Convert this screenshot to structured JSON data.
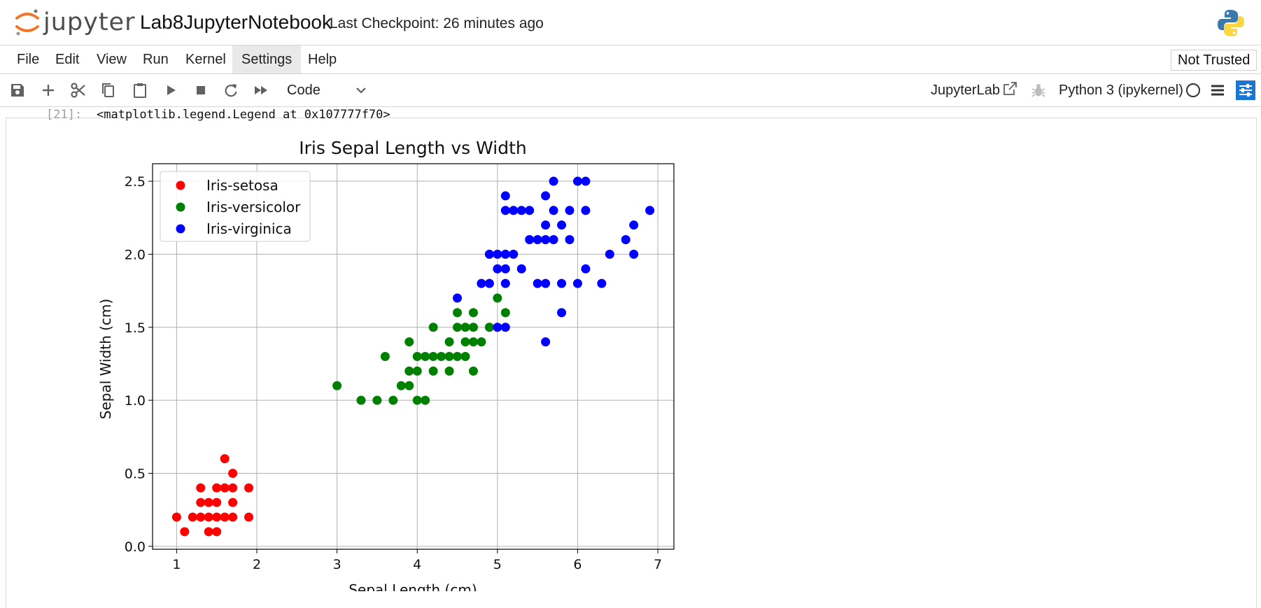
{
  "header": {
    "logo_text": "jupyter",
    "notebook_title": "Lab8JupyterNotebook",
    "checkpoint": "Last Checkpoint: 26 minutes ago"
  },
  "menu": {
    "items": [
      "File",
      "Edit",
      "View",
      "Run",
      "Kernel",
      "Settings",
      "Help"
    ],
    "active": "Settings",
    "trust_status": "Not Trusted"
  },
  "toolbar": {
    "icons": [
      "save-icon",
      "plus-icon",
      "scissors-icon",
      "copy-icon",
      "paste-icon",
      "play-icon",
      "stop-icon",
      "restart-icon",
      "fast-forward-icon"
    ],
    "cell_type": "Code",
    "jupyterlab_label": "JupyterLab",
    "kernel_name": "Python 3 (ipykernel)"
  },
  "output": {
    "prompt": "[21]:",
    "text": "<matplotlib.legend.Legend at 0x107777f70>"
  },
  "chart_data": {
    "type": "scatter",
    "title": "Iris Sepal Length vs Width",
    "xlabel": "Sepal Length (cm)",
    "ylabel": "Sepal Width (cm)",
    "xlim": [
      0.7,
      7.2
    ],
    "ylim": [
      -0.02,
      2.62
    ],
    "xticks": [
      1,
      2,
      3,
      4,
      5,
      6,
      7
    ],
    "yticks": [
      0.0,
      0.5,
      1.0,
      1.5,
      2.0,
      2.5
    ],
    "grid": true,
    "legend_position": "upper-left",
    "series": [
      {
        "name": "Iris-setosa",
        "color": "#ff0000",
        "points": [
          [
            1.0,
            0.2
          ],
          [
            1.1,
            0.1
          ],
          [
            1.2,
            0.2
          ],
          [
            1.3,
            0.2
          ],
          [
            1.3,
            0.3
          ],
          [
            1.3,
            0.4
          ],
          [
            1.4,
            0.2
          ],
          [
            1.4,
            0.3
          ],
          [
            1.4,
            0.1
          ],
          [
            1.5,
            0.2
          ],
          [
            1.5,
            0.1
          ],
          [
            1.5,
            0.3
          ],
          [
            1.5,
            0.4
          ],
          [
            1.6,
            0.2
          ],
          [
            1.6,
            0.4
          ],
          [
            1.6,
            0.6
          ],
          [
            1.7,
            0.2
          ],
          [
            1.7,
            0.3
          ],
          [
            1.7,
            0.4
          ],
          [
            1.7,
            0.5
          ],
          [
            1.9,
            0.2
          ],
          [
            1.9,
            0.4
          ]
        ]
      },
      {
        "name": "Iris-versicolor",
        "color": "#008000",
        "points": [
          [
            3.0,
            1.1
          ],
          [
            3.3,
            1.0
          ],
          [
            3.5,
            1.0
          ],
          [
            3.6,
            1.3
          ],
          [
            3.7,
            1.0
          ],
          [
            3.8,
            1.1
          ],
          [
            3.9,
            1.1
          ],
          [
            3.9,
            1.2
          ],
          [
            3.9,
            1.4
          ],
          [
            4.0,
            1.0
          ],
          [
            4.0,
            1.2
          ],
          [
            4.0,
            1.3
          ],
          [
            4.1,
            1.0
          ],
          [
            4.1,
            1.3
          ],
          [
            4.2,
            1.2
          ],
          [
            4.2,
            1.3
          ],
          [
            4.2,
            1.5
          ],
          [
            4.3,
            1.3
          ],
          [
            4.4,
            1.2
          ],
          [
            4.4,
            1.3
          ],
          [
            4.4,
            1.4
          ],
          [
            4.5,
            1.3
          ],
          [
            4.5,
            1.5
          ],
          [
            4.5,
            1.6
          ],
          [
            4.6,
            1.3
          ],
          [
            4.6,
            1.4
          ],
          [
            4.6,
            1.5
          ],
          [
            4.7,
            1.2
          ],
          [
            4.7,
            1.4
          ],
          [
            4.7,
            1.5
          ],
          [
            4.7,
            1.6
          ],
          [
            4.8,
            1.4
          ],
          [
            4.9,
            1.5
          ],
          [
            5.0,
            1.7
          ],
          [
            5.1,
            1.6
          ]
        ]
      },
      {
        "name": "Iris-virginica",
        "color": "#0000ff",
        "points": [
          [
            4.5,
            1.7
          ],
          [
            4.8,
            1.8
          ],
          [
            4.9,
            1.8
          ],
          [
            4.9,
            2.0
          ],
          [
            5.0,
            1.5
          ],
          [
            5.0,
            1.9
          ],
          [
            5.0,
            2.0
          ],
          [
            5.1,
            1.5
          ],
          [
            5.1,
            1.8
          ],
          [
            5.1,
            1.9
          ],
          [
            5.1,
            2.0
          ],
          [
            5.1,
            2.3
          ],
          [
            5.1,
            2.4
          ],
          [
            5.2,
            2.0
          ],
          [
            5.2,
            2.3
          ],
          [
            5.3,
            1.9
          ],
          [
            5.3,
            2.3
          ],
          [
            5.4,
            2.1
          ],
          [
            5.4,
            2.3
          ],
          [
            5.5,
            1.8
          ],
          [
            5.5,
            2.1
          ],
          [
            5.6,
            1.4
          ],
          [
            5.6,
            1.8
          ],
          [
            5.6,
            2.1
          ],
          [
            5.6,
            2.2
          ],
          [
            5.6,
            2.4
          ],
          [
            5.7,
            2.1
          ],
          [
            5.7,
            2.3
          ],
          [
            5.7,
            2.5
          ],
          [
            5.8,
            1.6
          ],
          [
            5.8,
            1.8
          ],
          [
            5.8,
            2.2
          ],
          [
            5.9,
            2.1
          ],
          [
            5.9,
            2.3
          ],
          [
            6.0,
            1.8
          ],
          [
            6.0,
            2.5
          ],
          [
            6.1,
            1.9
          ],
          [
            6.1,
            2.3
          ],
          [
            6.1,
            2.5
          ],
          [
            6.3,
            1.8
          ],
          [
            6.4,
            2.0
          ],
          [
            6.6,
            2.1
          ],
          [
            6.7,
            2.0
          ],
          [
            6.7,
            2.2
          ],
          [
            6.9,
            2.3
          ]
        ]
      }
    ]
  }
}
